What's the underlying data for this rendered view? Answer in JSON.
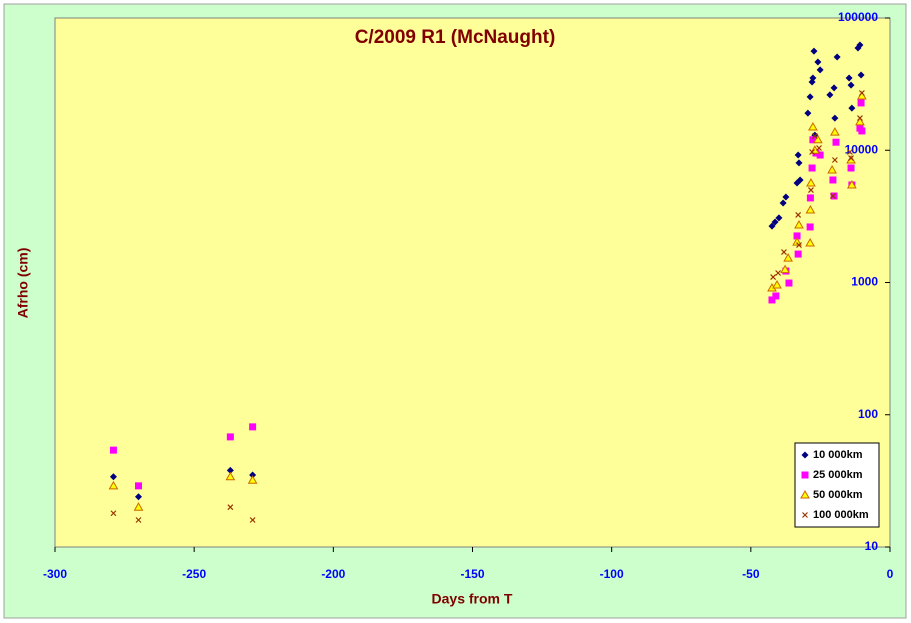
{
  "chart_data": {
    "type": "scatter",
    "title": "C/2009 R1 (McNaught)",
    "x_label": "Days from T",
    "y_label": "Afrho (cm)",
    "xlim": [
      -300,
      0
    ],
    "xticks": [
      -300,
      -250,
      -200,
      -150,
      -100,
      -50,
      0
    ],
    "ylim": [
      10,
      100000
    ],
    "yticks": [
      10,
      100,
      1000,
      10000,
      100000
    ],
    "y_scale": "log",
    "grid": false,
    "legend": "lower right",
    "series": [
      {
        "name": "10 000km",
        "color": "#000080",
        "marker": "diamond",
        "x": [
          -279,
          -270,
          -237,
          -229,
          -42.4,
          -41.3,
          -39.9,
          -38.4,
          -37.4,
          -33.4,
          -33.0,
          -32.7,
          -32.3,
          -29.5,
          -28.7,
          -28.0,
          -27.7,
          -27.3,
          -27.0,
          -25.9,
          -25.1,
          -21.6,
          -20.1,
          -19.8,
          -19.0,
          -14.7,
          -14.0,
          -13.7,
          -11.5,
          -10.8,
          -10.4
        ],
        "values": [
          34,
          24,
          38,
          35,
          2670,
          2870,
          3080,
          3990,
          4430,
          5650,
          9200,
          8020,
          5960,
          19100,
          25300,
          32800,
          35200,
          56200,
          13000,
          46500,
          40500,
          26200,
          29600,
          17500,
          50700,
          35200,
          31100,
          20800,
          59300,
          62500,
          37100
        ]
      },
      {
        "name": "25 000km",
        "color": "#ff00ff",
        "marker": "square",
        "x": [
          -279,
          -270,
          -237,
          -229,
          -42.4,
          -41.0,
          -37.4,
          -36.3,
          -33.4,
          -33.0,
          -28.7,
          -28.6,
          -28.0,
          -27.7,
          -26.6,
          -25.1,
          -20.5,
          -20.1,
          -19.4,
          -14.0,
          -13.7,
          -10.8,
          -10.4,
          -10.1
        ],
        "values": [
          54,
          29,
          68,
          81,
          738,
          791,
          1220,
          991,
          2250,
          1640,
          2630,
          4360,
          7340,
          12000,
          9530,
          9200,
          5960,
          4510,
          11500,
          7340,
          5460,
          14700,
          22800,
          14000
        ]
      },
      {
        "name": "50 000km",
        "color": "#cc6600",
        "marker": "triangle",
        "x": [
          -279,
          -270,
          -237,
          -229,
          -42.4,
          -40.6,
          -37.7,
          -36.6,
          -33.4,
          -32.7,
          -28.7,
          -28.6,
          -28.4,
          -27.7,
          -27.0,
          -25.9,
          -20.8,
          -19.8,
          -14.0,
          -13.7,
          -10.8,
          -10.1
        ],
        "values": [
          29,
          20,
          34,
          32,
          908,
          957,
          1250,
          1530,
          2020,
          2720,
          1990,
          3530,
          5650,
          15000,
          10000,
          12000,
          7090,
          13700,
          8440,
          5460,
          16400,
          25700
        ]
      },
      {
        "name": "100 000km",
        "color": "#993300",
        "marker": "cross",
        "x": [
          -279,
          -270,
          -237,
          -229,
          -42.0,
          -40.2,
          -38.1,
          -33.0,
          -32.7,
          -28.4,
          -28.0,
          -27.0,
          -25.5,
          -20.5,
          -19.8,
          -14.4,
          -14.0,
          -10.8,
          -10.1
        ],
        "values": [
          18,
          16,
          20,
          16,
          1100,
          1180,
          1700,
          3240,
          1920,
          5000,
          9700,
          12800,
          10400,
          4510,
          8440,
          9700,
          8730,
          17500,
          27100
        ]
      }
    ]
  }
}
